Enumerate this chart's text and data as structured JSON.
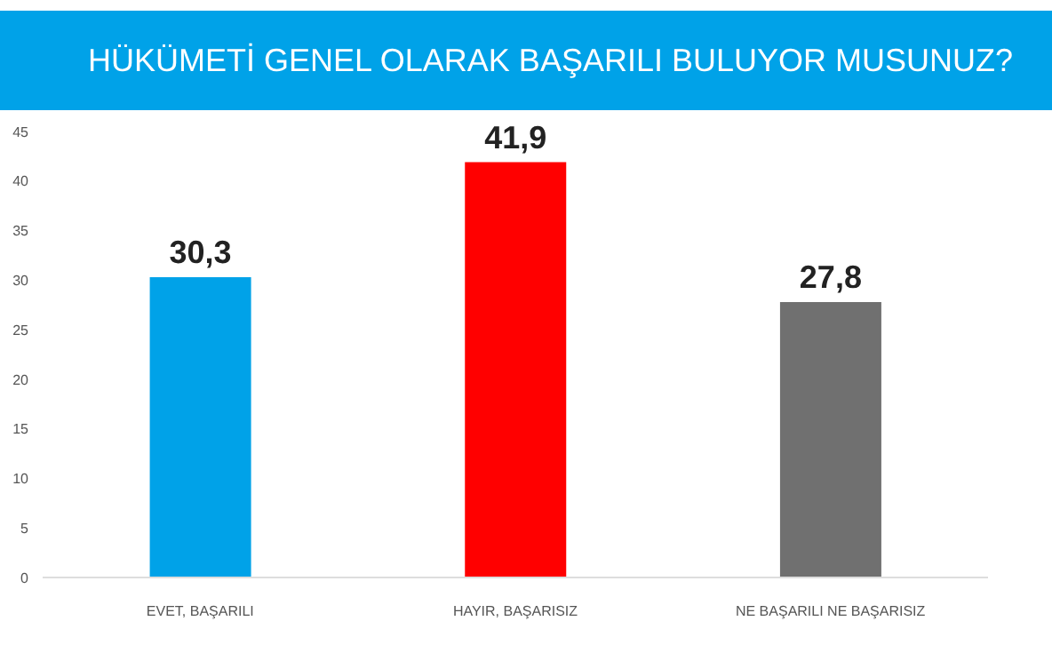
{
  "chart_data": {
    "type": "bar",
    "title": "HÜKÜMETİ GENEL OLARAK BAŞARILI BULUYOR MUSUNUZ?",
    "categories": [
      "EVET, BAŞARILI",
      "HAYIR, BAŞARISIZ",
      "NE BAŞARILI NE BAŞARISIZ"
    ],
    "values": [
      30.3,
      41.9,
      27.8
    ],
    "colors": [
      "#00a2e8",
      "#ff0000",
      "#707070"
    ],
    "value_labels": [
      "30,3",
      "41,9",
      "27,8"
    ],
    "ylim": [
      0,
      45
    ],
    "yticks": [
      0,
      5,
      10,
      15,
      20,
      25,
      30,
      35,
      40,
      45
    ],
    "grid": false
  }
}
